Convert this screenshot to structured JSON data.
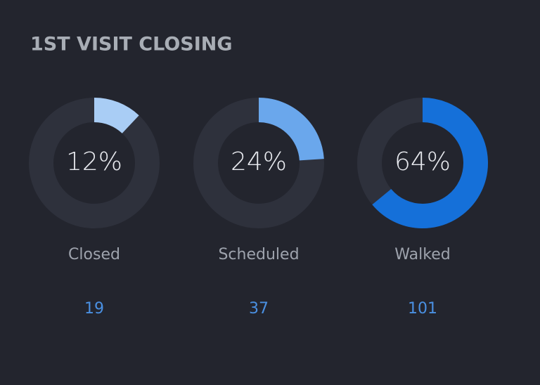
{
  "title": "1ST VISIT CLOSING",
  "track_color": "#2e313c",
  "gauges": [
    {
      "percent": 12,
      "percent_label": "12%",
      "label": "Closed",
      "count": 19,
      "color": "#a9cdf5"
    },
    {
      "percent": 24,
      "percent_label": "24%",
      "label": "Scheduled",
      "count": 37,
      "color": "#6aa7ec"
    },
    {
      "percent": 64,
      "percent_label": "64%",
      "label": "Walked",
      "count": 101,
      "color": "#1570d9"
    }
  ]
}
